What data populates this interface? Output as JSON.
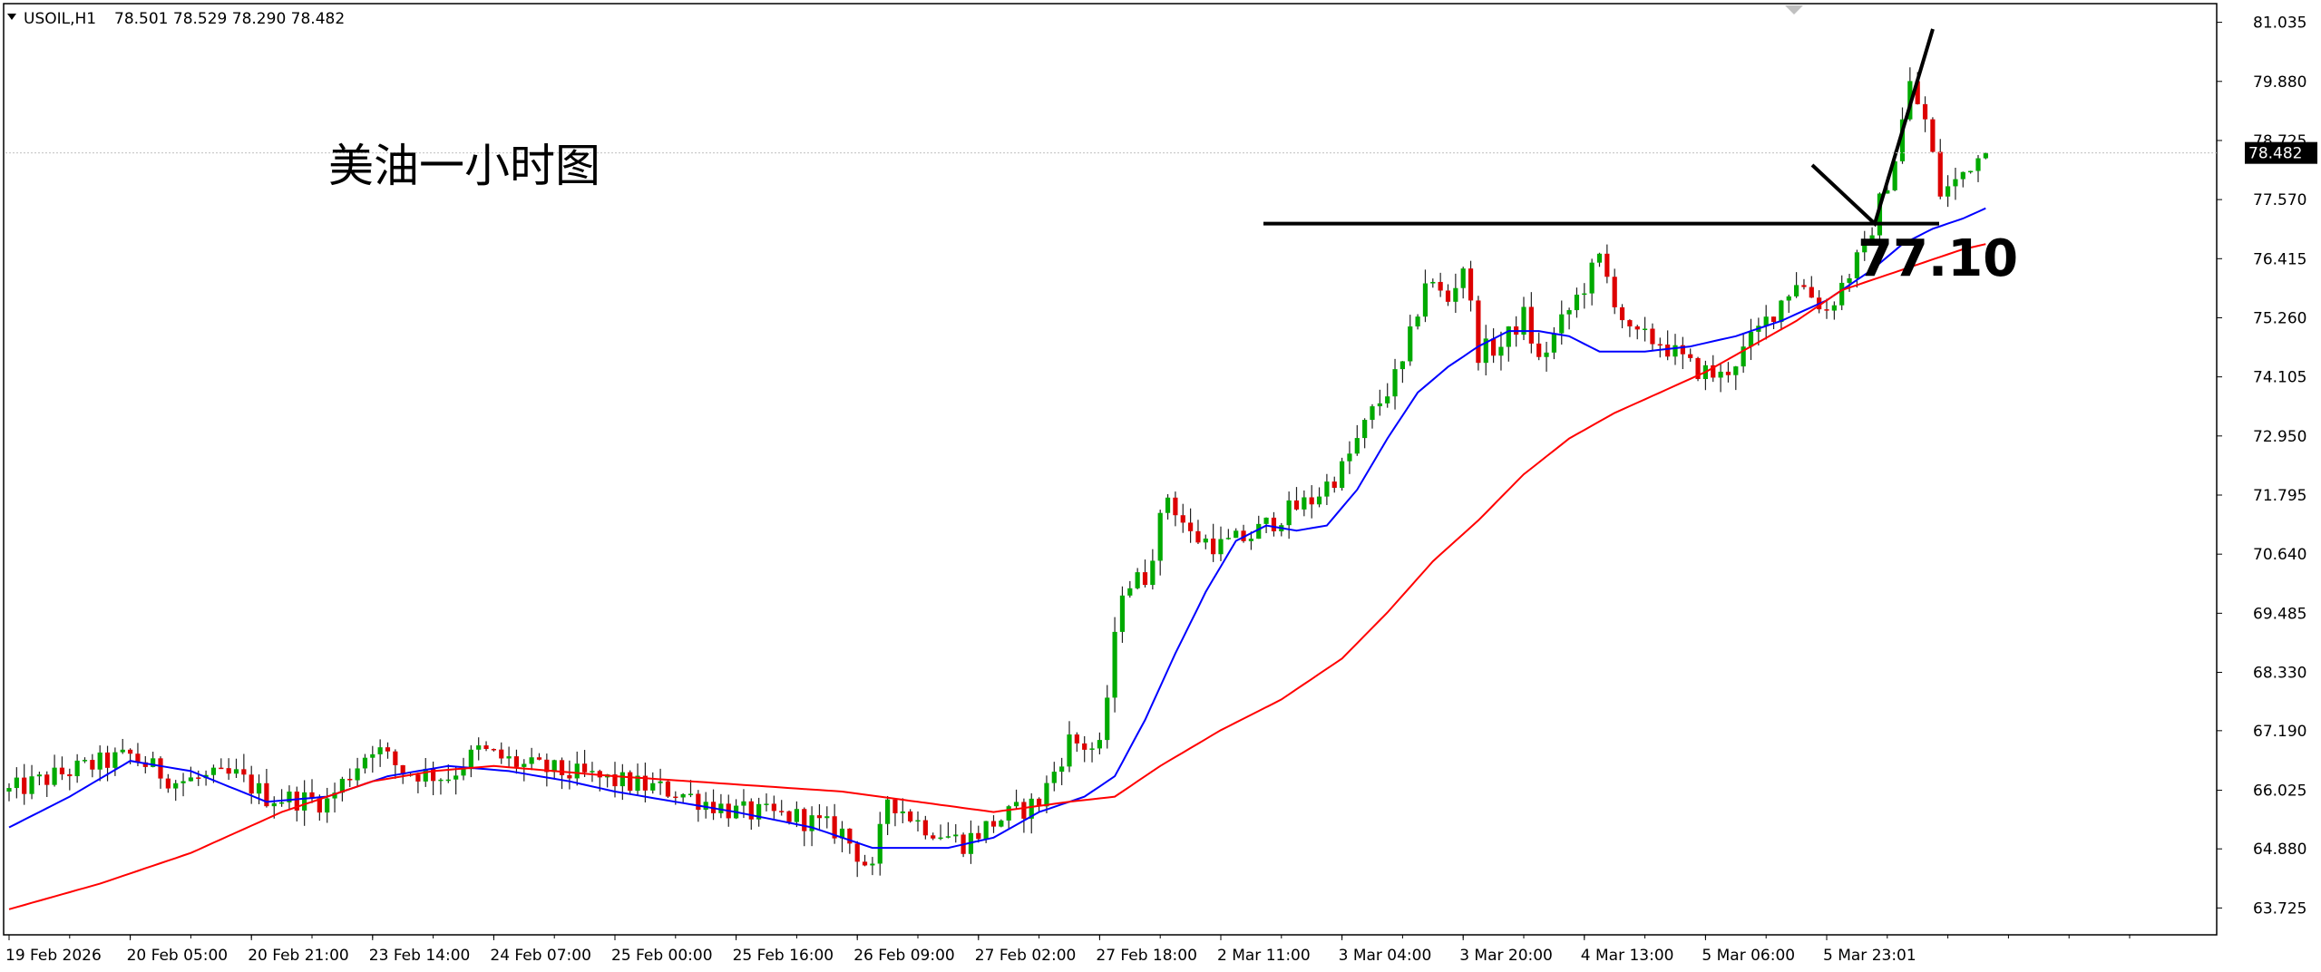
{
  "header": {
    "symbol": "USOIL,H1",
    "ohlc": "78.501 78.529 78.290 78.482"
  },
  "annotation": {
    "title": "美油一小时图",
    "level_label": "77.10",
    "level": 77.1
  },
  "colors": {
    "background": "#ffffff",
    "bull_candle": "#00aa00",
    "bear_candle": "#dd0000",
    "wick": "#222222",
    "fast_ma": "#0000ff",
    "slow_ma": "#ff0000",
    "axis": "#000000",
    "grid": "#c0c0c0",
    "price_tag_bg": "#000000",
    "price_tag_fg": "#ffffff"
  },
  "chart_data": {
    "type": "candlestick",
    "title": "美油一小时图",
    "symbol": "USOIL",
    "timeframe": "H1",
    "ylim": [
      63.2,
      81.4
    ],
    "y_ticks": [
      "81.035",
      "79.880",
      "78.725",
      "77.570",
      "76.415",
      "75.260",
      "74.105",
      "72.950",
      "71.795",
      "70.640",
      "69.485",
      "68.330",
      "67.190",
      "66.025",
      "64.880",
      "63.725"
    ],
    "x_ticks": [
      "19 Feb 2026",
      "20 Feb 05:00",
      "20 Feb 21:00",
      "23 Feb 14:00",
      "24 Feb 07:00",
      "25 Feb 00:00",
      "25 Feb 16:00",
      "26 Feb 09:00",
      "27 Feb 02:00",
      "27 Feb 18:00",
      "2 Mar 11:00",
      "3 Mar 04:00",
      "3 Mar 20:00",
      "4 Mar 13:00",
      "5 Mar 06:00",
      "5 Mar 23:01"
    ],
    "x_tick_index": [
      0,
      16,
      32,
      48,
      64,
      80,
      96,
      112,
      128,
      144,
      160,
      176,
      192,
      208,
      224,
      240
    ],
    "current_price": 78.482,
    "current_price_label": "78.482",
    "horizontal_line": 77.1,
    "close_path": [
      [
        0,
        66.0
      ],
      [
        8,
        66.4
      ],
      [
        16,
        66.7
      ],
      [
        22,
        66.2
      ],
      [
        30,
        66.3
      ],
      [
        34,
        65.9
      ],
      [
        42,
        65.8
      ],
      [
        48,
        66.9
      ],
      [
        52,
        66.4
      ],
      [
        58,
        66.3
      ],
      [
        62,
        66.8
      ],
      [
        68,
        66.5
      ],
      [
        72,
        66.4
      ],
      [
        80,
        66.2
      ],
      [
        88,
        66.0
      ],
      [
        96,
        65.6
      ],
      [
        104,
        65.5
      ],
      [
        110,
        65.2
      ],
      [
        114,
        64.4
      ],
      [
        116,
        65.9
      ],
      [
        120,
        65.4
      ],
      [
        126,
        65.0
      ],
      [
        130,
        65.4
      ],
      [
        136,
        65.8
      ],
      [
        140,
        67.0
      ],
      [
        144,
        66.8
      ],
      [
        147,
        70.0
      ],
      [
        150,
        70.2
      ],
      [
        153,
        71.8
      ],
      [
        156,
        71.0
      ],
      [
        160,
        70.8
      ],
      [
        164,
        71.0
      ],
      [
        168,
        71.4
      ],
      [
        172,
        71.7
      ],
      [
        176,
        72.3
      ],
      [
        180,
        73.4
      ],
      [
        184,
        74.3
      ],
      [
        187,
        76.0
      ],
      [
        190,
        75.6
      ],
      [
        192,
        76.3
      ],
      [
        194,
        74.6
      ],
      [
        197,
        74.7
      ],
      [
        200,
        75.3
      ],
      [
        202,
        74.4
      ],
      [
        206,
        75.4
      ],
      [
        210,
        76.4
      ],
      [
        214,
        74.9
      ],
      [
        218,
        74.8
      ],
      [
        222,
        74.3
      ],
      [
        226,
        74.1
      ],
      [
        229,
        74.6
      ],
      [
        232,
        75.2
      ],
      [
        236,
        76.0
      ],
      [
        240,
        75.4
      ],
      [
        242,
        75.9
      ],
      [
        245,
        76.6
      ],
      [
        249,
        78.4
      ],
      [
        251,
        79.8
      ],
      [
        253,
        79.1
      ],
      [
        255,
        77.7
      ],
      [
        257,
        77.9
      ],
      [
        259,
        78.3
      ],
      [
        261,
        78.48
      ]
    ],
    "series": [
      {
        "name": "",
        "color": "#0000ff",
        "points": [
          [
            0,
            65.3
          ],
          [
            8,
            65.9
          ],
          [
            16,
            66.6
          ],
          [
            24,
            66.4
          ],
          [
            34,
            65.8
          ],
          [
            42,
            65.9
          ],
          [
            50,
            66.3
          ],
          [
            58,
            66.5
          ],
          [
            66,
            66.4
          ],
          [
            74,
            66.2
          ],
          [
            80,
            66.0
          ],
          [
            88,
            65.8
          ],
          [
            96,
            65.6
          ],
          [
            106,
            65.3
          ],
          [
            114,
            64.9
          ],
          [
            124,
            64.9
          ],
          [
            130,
            65.1
          ],
          [
            136,
            65.6
          ],
          [
            142,
            65.9
          ],
          [
            146,
            66.3
          ],
          [
            150,
            67.4
          ],
          [
            154,
            68.7
          ],
          [
            158,
            69.9
          ],
          [
            162,
            70.9
          ],
          [
            166,
            71.2
          ],
          [
            170,
            71.1
          ],
          [
            174,
            71.2
          ],
          [
            178,
            71.9
          ],
          [
            182,
            72.9
          ],
          [
            186,
            73.8
          ],
          [
            190,
            74.3
          ],
          [
            194,
            74.7
          ],
          [
            198,
            75.0
          ],
          [
            202,
            75.0
          ],
          [
            206,
            74.9
          ],
          [
            210,
            74.6
          ],
          [
            216,
            74.6
          ],
          [
            222,
            74.7
          ],
          [
            228,
            74.9
          ],
          [
            234,
            75.2
          ],
          [
            240,
            75.6
          ],
          [
            246,
            76.2
          ],
          [
            250,
            76.7
          ],
          [
            254,
            77.0
          ],
          [
            258,
            77.2
          ],
          [
            261,
            77.4
          ]
        ]
      },
      {
        "name": "",
        "color": "#ff0000",
        "points": [
          [
            0,
            63.7
          ],
          [
            12,
            64.2
          ],
          [
            24,
            64.8
          ],
          [
            36,
            65.6
          ],
          [
            48,
            66.2
          ],
          [
            56,
            66.4
          ],
          [
            64,
            66.5
          ],
          [
            72,
            66.4
          ],
          [
            80,
            66.3
          ],
          [
            90,
            66.2
          ],
          [
            100,
            66.1
          ],
          [
            110,
            66.0
          ],
          [
            120,
            65.8
          ],
          [
            130,
            65.6
          ],
          [
            140,
            65.8
          ],
          [
            146,
            65.9
          ],
          [
            152,
            66.5
          ],
          [
            160,
            67.2
          ],
          [
            168,
            67.8
          ],
          [
            176,
            68.6
          ],
          [
            182,
            69.5
          ],
          [
            188,
            70.5
          ],
          [
            194,
            71.3
          ],
          [
            200,
            72.2
          ],
          [
            206,
            72.9
          ],
          [
            212,
            73.4
          ],
          [
            218,
            73.8
          ],
          [
            224,
            74.2
          ],
          [
            230,
            74.7
          ],
          [
            236,
            75.2
          ],
          [
            242,
            75.8
          ],
          [
            248,
            76.1
          ],
          [
            254,
            76.4
          ],
          [
            258,
            76.6
          ],
          [
            261,
            76.7
          ]
        ]
      }
    ],
    "grid": false,
    "legend": "none"
  }
}
